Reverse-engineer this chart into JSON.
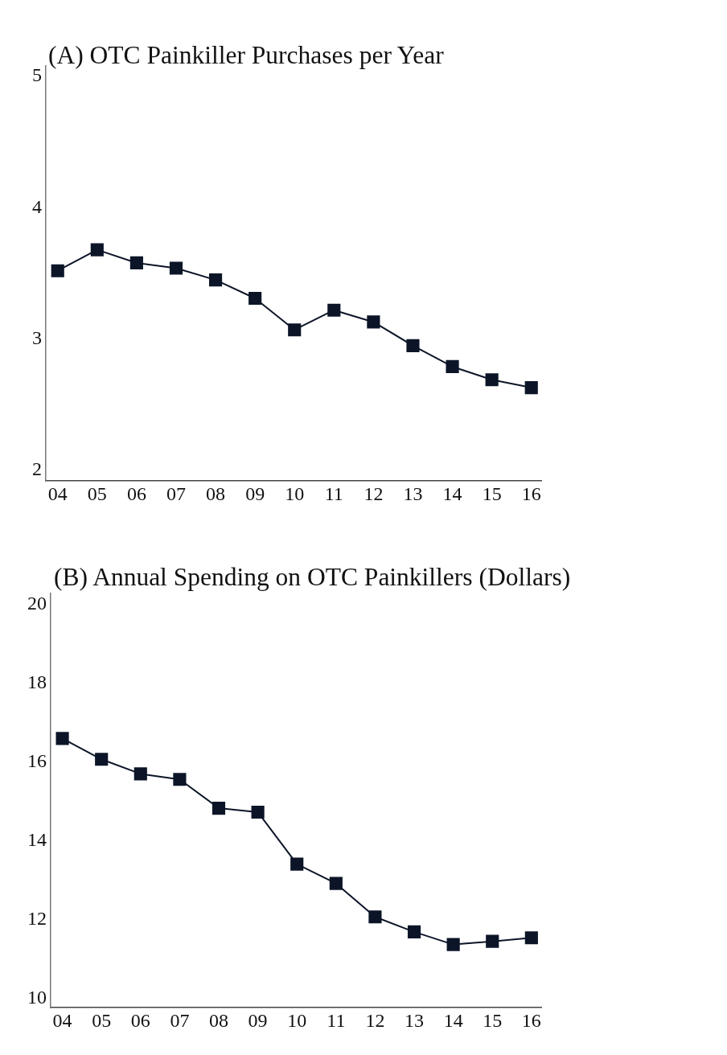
{
  "chart_data": [
    {
      "type": "line",
      "title": "(A) OTC Painkiller Purchases per Year",
      "categories": [
        "04",
        "05",
        "06",
        "07",
        "08",
        "09",
        "10",
        "11",
        "12",
        "13",
        "14",
        "15",
        "16"
      ],
      "values": [
        3.52,
        3.68,
        3.58,
        3.54,
        3.45,
        3.31,
        3.07,
        3.22,
        3.13,
        2.95,
        2.79,
        2.69,
        2.63
      ],
      "color": "#0c1528",
      "marker": "square",
      "ylim": [
        1.92,
        5.08
      ],
      "yticks": [
        2,
        3,
        4,
        5
      ]
    },
    {
      "type": "line",
      "title": "(B) Annual Spending on OTC Painkillers (Dollars)",
      "categories": [
        "04",
        "05",
        "06",
        "07",
        "08",
        "09",
        "10",
        "11",
        "12",
        "13",
        "14",
        "15",
        "16"
      ],
      "values": [
        16.59,
        16.06,
        15.69,
        15.55,
        14.82,
        14.72,
        13.4,
        12.91,
        12.06,
        11.68,
        11.36,
        11.44,
        11.53
      ],
      "color": "#0c1528",
      "marker": "square",
      "ylim": [
        9.76,
        20.27
      ],
      "yticks": [
        10,
        12,
        14,
        16,
        18,
        20
      ]
    }
  ]
}
